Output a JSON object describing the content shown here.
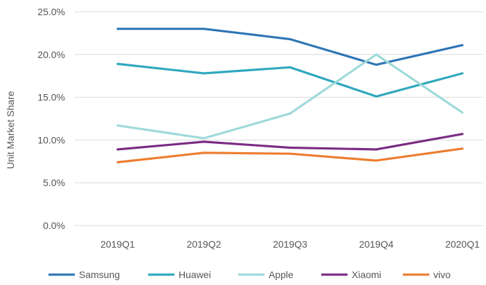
{
  "chart_data": {
    "type": "line",
    "title": "",
    "xlabel": "",
    "ylabel": "Unit Market Share",
    "categories": [
      "2019Q1",
      "2019Q2",
      "2019Q3",
      "2019Q4",
      "2020Q1"
    ],
    "ylim": [
      0,
      25
    ],
    "yticks": [
      "0.0%",
      "5.0%",
      "10.0%",
      "15.0%",
      "20.0%",
      "25.0%"
    ],
    "grid": true,
    "legend": "bottom",
    "series": [
      {
        "name": "Samsung",
        "color": "#2e75b6",
        "values": [
          23.0,
          23.0,
          21.8,
          18.8,
          21.1
        ]
      },
      {
        "name": "Huawei",
        "color": "#2fa8bd",
        "values": [
          18.9,
          17.8,
          18.5,
          15.1,
          17.8
        ]
      },
      {
        "name": "Apple",
        "color": "#9fd9d9",
        "values": [
          11.7,
          10.2,
          13.1,
          20.0,
          13.2
        ]
      },
      {
        "name": "Xiaomi",
        "color": "#7b2c83",
        "values": [
          8.9,
          9.8,
          9.1,
          8.9,
          10.7
        ]
      },
      {
        "name": "vivo",
        "color": "#ed7d31",
        "values": [
          7.4,
          8.5,
          8.4,
          7.6,
          9.0
        ]
      }
    ]
  }
}
